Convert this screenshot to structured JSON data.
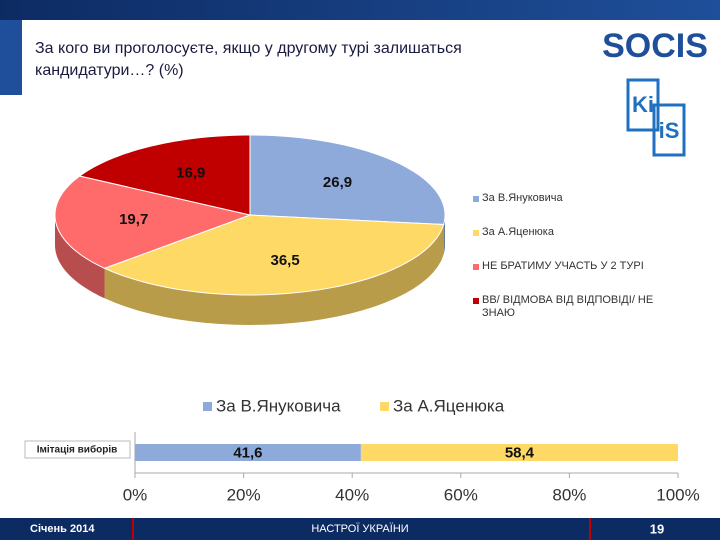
{
  "slide": {
    "title": "За кого ви проголосуєте, якщо у другому турі залишаться кандидатури…? (%)",
    "logos": [
      "SOCIS",
      "Ki",
      "iS"
    ],
    "footer": {
      "date": "Січень 2014",
      "center": "НАСТРОЇ УКРАЇНИ",
      "page": "19"
    }
  },
  "chart_data": [
    {
      "type": "pie",
      "categories": [
        "За В.Януковича",
        "За А.Яценюка",
        "НЕ БРАТИМУ УЧАСТЬ У 2 ТУРІ",
        "ВВ/ ВІДМОВА ВІД ВІДПОВІДІ/ НЕ ЗНАЮ"
      ],
      "values": [
        26.9,
        36.5,
        19.7,
        16.9
      ],
      "value_labels": [
        "26,9",
        "36,5",
        "19,7",
        "16,9"
      ],
      "colors": [
        "#8eaadb",
        "#ffd966",
        "#ff6b6b",
        "#c00000"
      ],
      "legend": "right"
    },
    {
      "type": "hbar-stacked",
      "categories": [
        "Імітація виборів"
      ],
      "series": [
        {
          "name": "За В.Януковича",
          "color": "#8eaadb",
          "values": [
            41.6
          ],
          "value_labels": [
            "41,6"
          ]
        },
        {
          "name": "За А.Яценюка",
          "color": "#ffd966",
          "values": [
            58.4
          ],
          "value_labels": [
            "58,4"
          ]
        }
      ],
      "xlim": [
        0,
        100
      ],
      "xticks": [
        {
          "value": 0,
          "label": "0%"
        },
        {
          "value": 20,
          "label": "20%"
        },
        {
          "value": 40,
          "label": "40%"
        },
        {
          "value": 60,
          "label": "60%"
        },
        {
          "value": 80,
          "label": "80%"
        },
        {
          "value": 100,
          "label": "100%"
        }
      ],
      "legend": "top"
    }
  ]
}
